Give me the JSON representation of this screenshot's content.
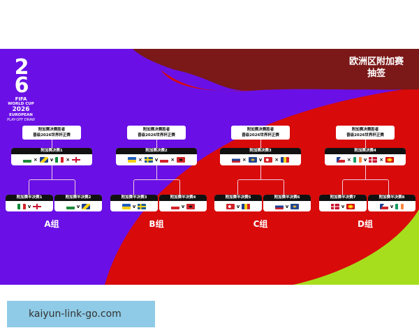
{
  "header": {
    "title_line1": "欧洲区附加赛",
    "title_line2": "抽签"
  },
  "logo": {
    "number_top": "2",
    "number_bottom": "6",
    "fifa": "FIFA",
    "line1": "WORLD CUP",
    "line2": "2026",
    "line3": "EUROPEAN",
    "line4": "PLAY-OFF DRAW"
  },
  "winner_label_line1": "附加赛决赛胜者",
  "winner_label_line2": "晋级2026世界杯正赛",
  "vs": "v",
  "or_mark": "×",
  "colors": {
    "purple": "#6a10e6",
    "red": "#d80a0a",
    "maroon": "#7b1818",
    "lime": "#a6de1e"
  },
  "groups": [
    {
      "label": "A组",
      "final": {
        "label": "附加赛决赛1",
        "flags": [
          "wales-flag",
          "bosnia-flag",
          "italy-flag",
          "northern-ireland-flag"
        ]
      },
      "semis": [
        {
          "label": "附加赛半决赛1",
          "flags": [
            "italy-flag",
            "northern-ireland-flag"
          ]
        },
        {
          "label": "附加赛半决赛2",
          "flags": [
            "wales-flag",
            "bosnia-flag"
          ]
        }
      ]
    },
    {
      "label": "B组",
      "final": {
        "label": "附加赛决赛2",
        "flags": [
          "ukraine-flag",
          "sweden-flag",
          "poland-flag",
          "albania-flag"
        ]
      },
      "semis": [
        {
          "label": "附加赛半决赛3",
          "flags": [
            "ukraine-flag",
            "sweden-flag"
          ]
        },
        {
          "label": "附加赛半决赛4",
          "flags": [
            "poland-flag",
            "albania-flag"
          ]
        }
      ]
    },
    {
      "label": "C组",
      "final": {
        "label": "附加赛决赛3",
        "flags": [
          "slovakia-flag",
          "kosovo-flag",
          "turkey-flag",
          "romania-flag"
        ]
      },
      "semis": [
        {
          "label": "附加赛半决赛5",
          "flags": [
            "turkey-flag",
            "romania-flag"
          ]
        },
        {
          "label": "附加赛半决赛6",
          "flags": [
            "slovakia-flag",
            "kosovo-flag"
          ]
        }
      ]
    },
    {
      "label": "D组",
      "final": {
        "label": "附加赛决赛4",
        "flags": [
          "czechia-flag",
          "ireland-flag",
          "denmark-flag",
          "north-macedonia-flag"
        ]
      },
      "semis": [
        {
          "label": "附加赛半决赛7",
          "flags": [
            "denmark-flag",
            "north-macedonia-flag"
          ]
        },
        {
          "label": "附加赛半决赛8",
          "flags": [
            "czechia-flag",
            "ireland-flag"
          ]
        }
      ]
    }
  ],
  "watermark": "kaiyun-link-go.com"
}
